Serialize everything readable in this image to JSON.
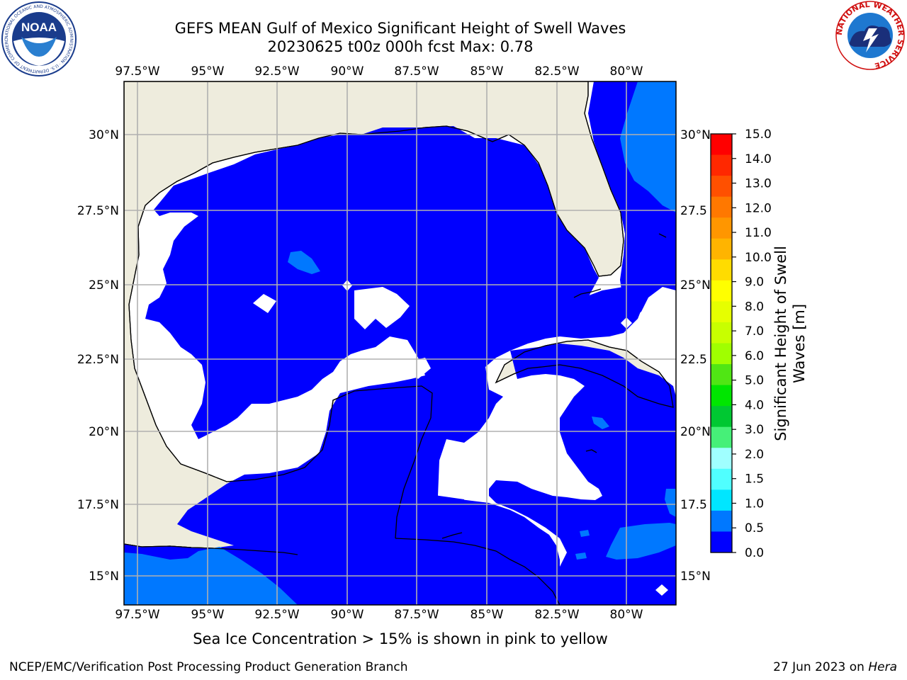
{
  "title_line1": "GEFS MEAN Gulf of Mexico Significant Height of Swell Waves",
  "title_line2": "20230625 t00z 000h fcst   Max: 0.78",
  "lon_labels": [
    "97.5°W",
    "95°W",
    "92.5°W",
    "90°W",
    "87.5°W",
    "85°W",
    "82.5°W",
    "80°W"
  ],
  "lat_labels_left": [
    "30°N",
    "27.5°N",
    "25°N",
    "22.5°N",
    "20°N",
    "17.5°N",
    "15°N"
  ],
  "lat_labels_right": [
    "30°N",
    "27.5",
    "25°N",
    "22.5",
    "20°N",
    "17.5",
    "15°N"
  ],
  "colorbar": {
    "title_line1": "Significant Height of Swell",
    "title_line2": "Waves [m]",
    "ticks": [
      "15.0",
      "14.0",
      "13.0",
      "12.0",
      "11.0",
      "10.0",
      "9.0",
      "8.0",
      "7.0",
      "6.0",
      "5.0",
      "4.0",
      "3.0",
      "2.0",
      "1.5",
      "1.0",
      "0.5",
      "0.0"
    ],
    "colors": [
      "#ff0000",
      "#ff2800",
      "#ff5000",
      "#ff7800",
      "#ff9600",
      "#ffb400",
      "#ffdc00",
      "#ffff00",
      "#e6ff00",
      "#c8ff00",
      "#a0ff00",
      "#50e614",
      "#00e600",
      "#00c832",
      "#46f078",
      "#a0ffff",
      "#50ffff",
      "#00e6ff",
      "#0078ff",
      "#0000ff"
    ]
  },
  "colors": {
    "land": "#eeecdd",
    "swell_low": "#0000ff",
    "swell_mid": "#0078ff",
    "grid": "#b0b0b0"
  },
  "note": "Sea Ice Concentration > 15% is shown in pink to yellow",
  "footer_left": "NCEP/EMC/Verification Post Processing Product Generation Branch",
  "footer_right_date": "27 Jun 2023 on ",
  "footer_right_host": "Hera",
  "logos": {
    "noaa_text": "NOAA",
    "noaa_ring": "NATIONAL OCEANIC AND ATMOSPHERIC ADMINISTRATION · U.S. DEPARTMENT OF COMMERCE",
    "nws_ring": "NATIONAL WEATHER SERVICE"
  }
}
